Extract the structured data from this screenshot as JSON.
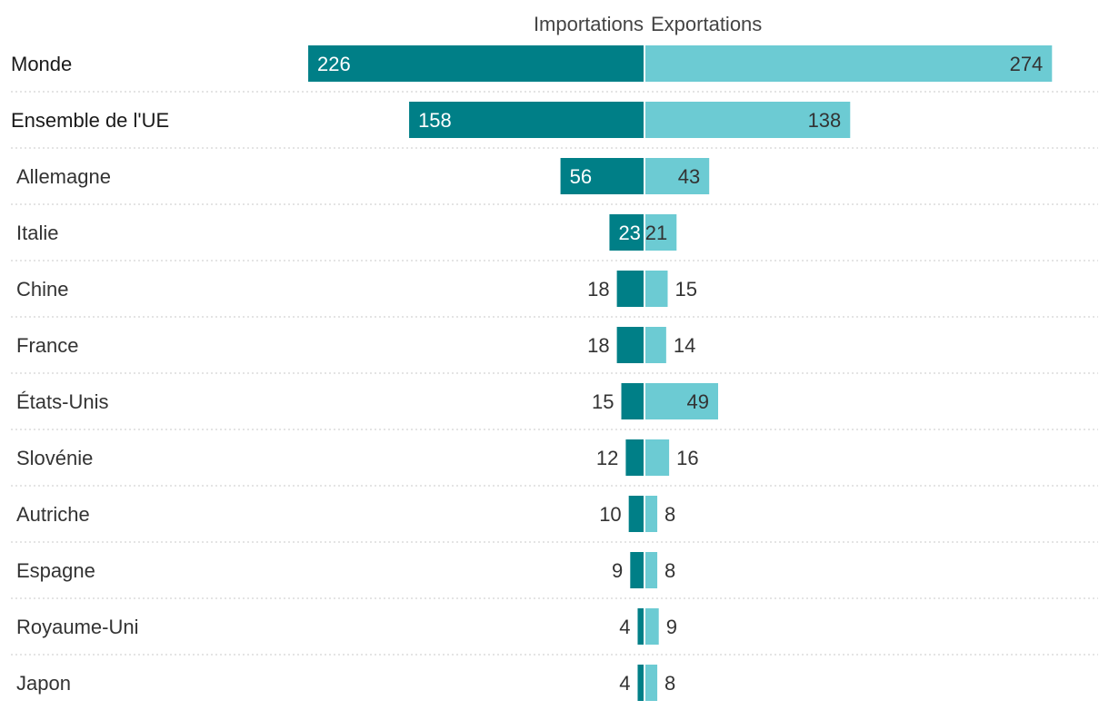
{
  "chart_data": {
    "type": "bar",
    "orientation": "horizontal-diverging",
    "legend": [
      "Importations",
      "Exportations"
    ],
    "series": [
      {
        "name": "Importations",
        "color": "#007f87"
      },
      {
        "name": "Exportations",
        "color": "#6ccbd3"
      }
    ],
    "categories": [
      "Monde",
      "Ensemble de l'UE",
      "Allemagne",
      "Italie",
      "Chine",
      "France",
      "États-Unis",
      "Slovénie",
      "Autriche",
      "Espagne",
      "Royaume-Uni",
      "Japon"
    ],
    "emphasized": [
      "Monde",
      "Ensemble de l'UE"
    ],
    "imports": [
      226,
      158,
      56,
      23,
      18,
      18,
      15,
      12,
      10,
      9,
      4,
      4
    ],
    "exports": [
      274,
      138,
      43,
      21,
      15,
      14,
      49,
      16,
      8,
      8,
      9,
      8
    ],
    "xlim": [
      -226,
      274
    ]
  }
}
